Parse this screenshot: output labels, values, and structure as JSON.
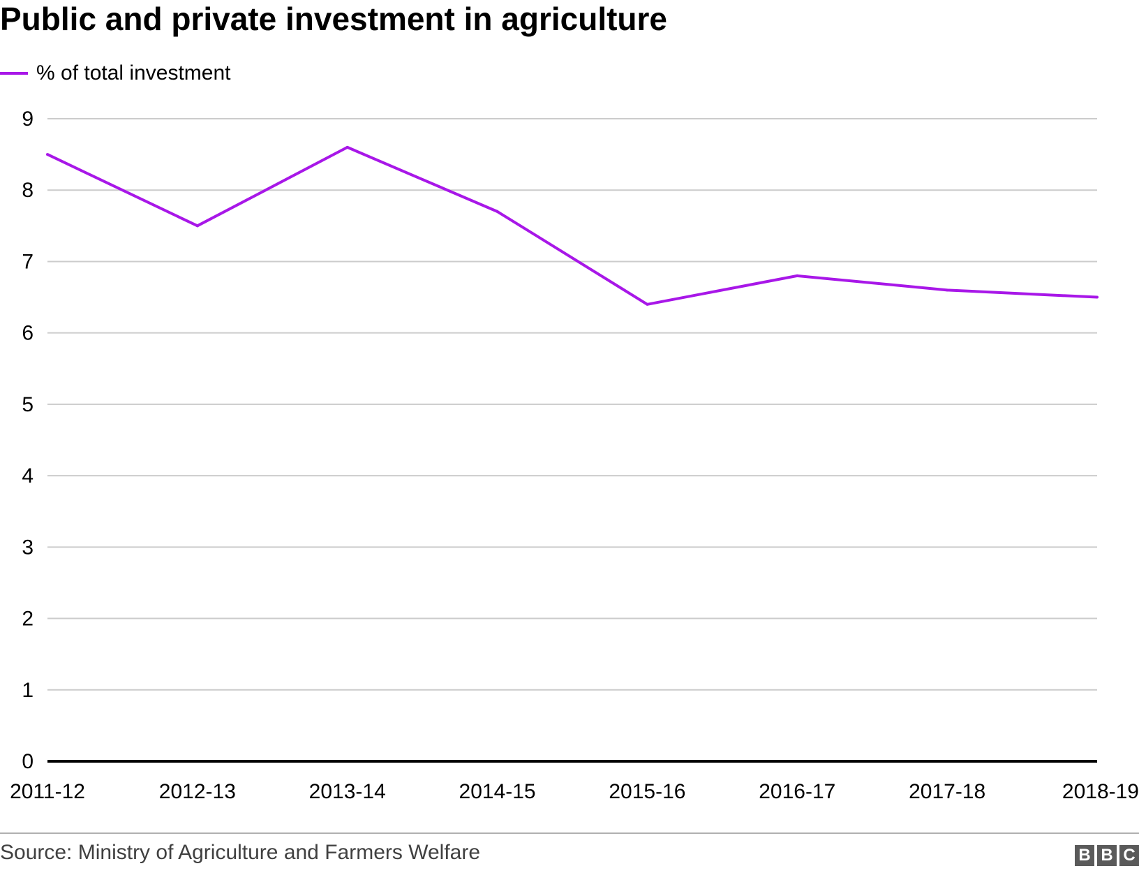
{
  "header": {
    "title": "Public and private investment in agriculture"
  },
  "footer": {
    "source": "Source: Ministry of Agriculture and Farmers Welfare",
    "logo": "BBC"
  },
  "colors": {
    "series": "#a817e8",
    "grid": "#cccccc",
    "axis": "#000000"
  },
  "chart_data": {
    "type": "line",
    "title": "Public and private investment in agriculture",
    "xlabel": "",
    "ylabel": "",
    "categories": [
      "2011-12",
      "2012-13",
      "2013-14",
      "2014-15",
      "2015-16",
      "2016-17",
      "2017-18",
      "2018-19"
    ],
    "series": [
      {
        "name": "% of total investment",
        "values": [
          8.5,
          7.5,
          8.6,
          7.7,
          6.4,
          6.8,
          6.6,
          6.5
        ]
      }
    ],
    "ylim": [
      0,
      9
    ],
    "yticks": [
      0,
      1,
      2,
      3,
      4,
      5,
      6,
      7,
      8,
      9
    ],
    "grid": true,
    "legend": "top-left"
  }
}
